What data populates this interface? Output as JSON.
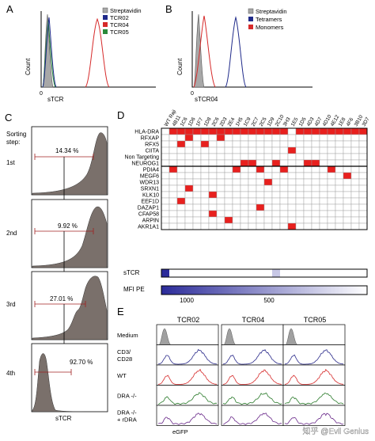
{
  "panels": {
    "A": {
      "letter": "A",
      "ylabel": "Count",
      "xlabel": "sTCR",
      "legend": [
        {
          "label": "Streptavidin",
          "color": "#a8a8a8"
        },
        {
          "label": "TCR02",
          "color": "#1f2a8a"
        },
        {
          "label": "TCR04",
          "color": "#d62a2a"
        },
        {
          "label": "TCR05",
          "color": "#2a8a3a"
        }
      ]
    },
    "B": {
      "letter": "B",
      "ylabel": "Count",
      "xlabel": "sTCR04",
      "legend": [
        {
          "label": "Streptavidin",
          "color": "#a8a8a8"
        },
        {
          "label": "Tetramers",
          "color": "#1f2a8a"
        },
        {
          "label": "Monomers",
          "color": "#d62a2a"
        }
      ]
    },
    "C": {
      "letter": "C",
      "title_line1": "Sorting",
      "title_line2": "step:",
      "xlabel": "sTCR",
      "steps": [
        {
          "label": "1st",
          "percent": "14.34 %"
        },
        {
          "label": "2nd",
          "percent": "9.92 %"
        },
        {
          "label": "3rd",
          "percent": "27.01 %"
        },
        {
          "label": "4th",
          "percent": "92.70 %"
        }
      ]
    },
    "D": {
      "letter": "D",
      "columns": [
        "WT Raji",
        "4B11",
        "1C6",
        "1D6",
        "1F7",
        "1D8",
        "2C6",
        "2D3",
        "2E4",
        "1H5",
        "1C9",
        "2C7",
        "2C5",
        "1D9",
        "2C10",
        "3H3",
        "1E5",
        "1D5",
        "4D3",
        "4D7",
        "4D10",
        "4E12",
        "1E8",
        "4F6",
        "3B10",
        "3D7"
      ],
      "rows": [
        "HLA-DRA",
        "RFXAP",
        "RFX5",
        "CIITA",
        "Non Targeting",
        "NEUROG1",
        "PDIA4",
        "MEGF6",
        "WDR13",
        "SRXN1",
        "KLK10",
        "EEF1D",
        "DAZAP1",
        "CFAP58",
        "ARPIN",
        "AKR1A1"
      ],
      "hits": [
        {
          "row": "HLA-DRA",
          "cols": [
            "4B11",
            "1C6",
            "1D6",
            "1F7",
            "1D8",
            "2C6",
            "2D3",
            "2E4",
            "1H5",
            "1C9",
            "2C7",
            "2C5",
            "1D9",
            "2C10",
            "3H3",
            "1D5",
            "4D3",
            "4D7",
            "4D10",
            "4E12",
            "1E8",
            "4F6",
            "3B10",
            "3D7"
          ]
        },
        {
          "row": "RFXAP",
          "cols": [
            "1D6",
            "2D3"
          ]
        },
        {
          "row": "RFX5",
          "cols": [
            "1C6",
            "1D8"
          ]
        },
        {
          "row": "CIITA",
          "cols": [
            "1E5"
          ]
        },
        {
          "row": "NEUROG1",
          "cols": [
            "1C9",
            "2C7",
            "2C10",
            "4D3",
            "4D7"
          ]
        },
        {
          "row": "PDIA4",
          "cols": [
            "4B11",
            "1H5",
            "2C5",
            "3H3",
            "4E12"
          ]
        },
        {
          "row": "MEGF6",
          "cols": [
            "4F6"
          ]
        },
        {
          "row": "WDR13",
          "cols": [
            "1D9"
          ]
        },
        {
          "row": "SRXN1",
          "cols": [
            "1D6"
          ]
        },
        {
          "row": "KLK10",
          "cols": [
            "2C6"
          ]
        },
        {
          "row": "EEF1D",
          "cols": [
            "1C6"
          ]
        },
        {
          "row": "DAZAP1",
          "cols": [
            "2C5"
          ]
        },
        {
          "row": "CFAP58",
          "cols": [
            "2C6"
          ]
        },
        {
          "row": "ARPIN",
          "cols": [
            "2E4"
          ]
        },
        {
          "row": "AKR1A1",
          "cols": [
            "1E5"
          ]
        }
      ],
      "hit_color": "#e8201e",
      "strip_label": "sTCR",
      "strip_dark_cols": [
        "WT Raji"
      ],
      "strip_mid_cols": [
        "2C10"
      ],
      "colorbar_label": "MFI PE",
      "colorbar_ticks": [
        "1000",
        "500"
      ],
      "colorbar_high": "#2b2b9a",
      "colorbar_low": "#ffffff"
    },
    "E": {
      "letter": "E",
      "xlabel": "eGFP",
      "columns": [
        "TCR02",
        "TCR04",
        "TCR05"
      ],
      "rows": [
        {
          "label": "Medium",
          "color": "#a0a0a0"
        },
        {
          "label": "CD3/\nCD28",
          "color": "#2a2a8a"
        },
        {
          "label": "WT",
          "color": "#d62a2a"
        },
        {
          "label": "DRA -/-",
          "color": "#2a7a2a"
        },
        {
          "label": "DRA -/-\n+ rDRA",
          "color": "#6a2a8a"
        }
      ]
    }
  },
  "watermark": "知乎 @Evil Genius"
}
